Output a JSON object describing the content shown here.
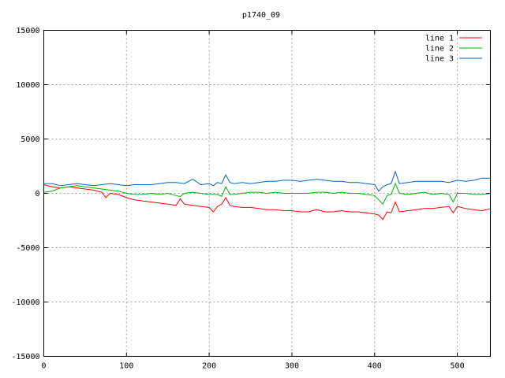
{
  "chart_data": {
    "type": "line",
    "title": "p1740_09",
    "xlabel": "",
    "ylabel": "",
    "xlim": [
      0,
      540
    ],
    "ylim": [
      -15000,
      15000
    ],
    "xticks": [
      0,
      100,
      200,
      300,
      400,
      500
    ],
    "yticks": [
      -15000,
      -10000,
      -5000,
      0,
      5000,
      10000,
      15000
    ],
    "grid": true,
    "legend_position": "top-right",
    "series": [
      {
        "name": "line 1",
        "color": "#ff0000",
        "x": [
          0,
          10,
          20,
          30,
          40,
          50,
          60,
          70,
          75,
          80,
          90,
          100,
          110,
          120,
          130,
          140,
          150,
          160,
          165,
          170,
          180,
          190,
          200,
          205,
          210,
          215,
          220,
          225,
          230,
          240,
          250,
          260,
          270,
          280,
          290,
          300,
          310,
          320,
          330,
          340,
          350,
          360,
          370,
          380,
          390,
          400,
          405,
          410,
          415,
          420,
          425,
          430,
          440,
          450,
          460,
          470,
          480,
          490,
          495,
          500,
          510,
          520,
          530,
          540
        ],
        "values": [
          800,
          600,
          500,
          600,
          500,
          400,
          300,
          100,
          -400,
          0,
          -100,
          -400,
          -600,
          -700,
          -800,
          -900,
          -1000,
          -1100,
          -500,
          -1000,
          -1100,
          -1200,
          -1300,
          -1700,
          -1200,
          -1000,
          -400,
          -1100,
          -1200,
          -1300,
          -1300,
          -1400,
          -1500,
          -1500,
          -1600,
          -1600,
          -1700,
          -1700,
          -1500,
          -1700,
          -1700,
          -1600,
          -1700,
          -1700,
          -1800,
          -1900,
          -2000,
          -2400,
          -1700,
          -1800,
          -800,
          -1700,
          -1600,
          -1500,
          -1400,
          -1400,
          -1300,
          -1200,
          -1800,
          -1200,
          -1400,
          -1500,
          -1600,
          -1400
        ]
      },
      {
        "name": "line 2",
        "color": "#00b000",
        "x": [
          0,
          10,
          20,
          30,
          40,
          50,
          60,
          70,
          80,
          90,
          100,
          110,
          120,
          130,
          140,
          150,
          160,
          165,
          170,
          180,
          190,
          200,
          210,
          215,
          220,
          225,
          230,
          240,
          250,
          260,
          270,
          280,
          290,
          300,
          310,
          320,
          330,
          340,
          350,
          360,
          370,
          380,
          390,
          400,
          405,
          410,
          415,
          420,
          425,
          430,
          440,
          450,
          460,
          470,
          480,
          490,
          495,
          500,
          510,
          520,
          530,
          540
        ],
        "values": [
          100,
          200,
          500,
          600,
          700,
          600,
          500,
          400,
          300,
          200,
          0,
          -100,
          -100,
          0,
          -100,
          0,
          -200,
          -300,
          0,
          100,
          0,
          -100,
          -100,
          -300,
          600,
          -100,
          -100,
          0,
          100,
          100,
          0,
          100,
          0,
          0,
          0,
          0,
          100,
          100,
          0,
          100,
          0,
          0,
          -100,
          -200,
          -600,
          -1000,
          -200,
          -100,
          900,
          0,
          -100,
          0,
          100,
          -100,
          0,
          -100,
          -800,
          0,
          0,
          -100,
          -100,
          0
        ]
      },
      {
        "name": "line 3",
        "color": "#0066cc",
        "x": [
          0,
          10,
          20,
          30,
          40,
          50,
          60,
          70,
          80,
          90,
          100,
          110,
          120,
          130,
          140,
          150,
          160,
          170,
          180,
          190,
          200,
          205,
          210,
          215,
          220,
          225,
          230,
          240,
          250,
          260,
          270,
          280,
          290,
          300,
          310,
          320,
          330,
          340,
          350,
          360,
          370,
          380,
          390,
          400,
          405,
          410,
          415,
          420,
          425,
          430,
          440,
          450,
          460,
          470,
          480,
          490,
          500,
          510,
          520,
          530,
          540
        ],
        "values": [
          900,
          900,
          700,
          800,
          900,
          800,
          700,
          800,
          900,
          800,
          700,
          800,
          800,
          800,
          900,
          1000,
          1000,
          900,
          1300,
          800,
          900,
          700,
          1000,
          900,
          1700,
          1000,
          900,
          1000,
          900,
          1000,
          1100,
          1100,
          1200,
          1200,
          1100,
          1200,
          1300,
          1200,
          1100,
          1100,
          1000,
          1000,
          900,
          800,
          200,
          600,
          800,
          900,
          2000,
          900,
          1000,
          1100,
          1100,
          1100,
          1100,
          1000,
          1200,
          1100,
          1200,
          1400,
          1400
        ]
      }
    ]
  }
}
